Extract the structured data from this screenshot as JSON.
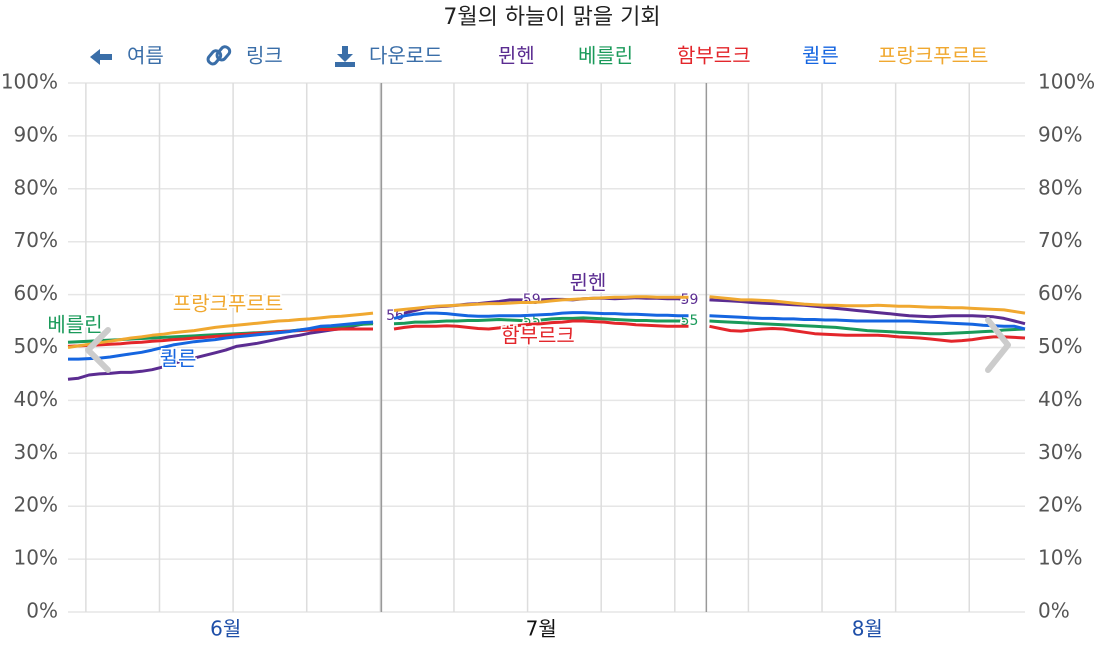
{
  "chart_data": {
    "type": "line",
    "title": "7월의 하늘이 맑을 기회",
    "toolbar": {
      "back": "여름",
      "link": "링크",
      "download": "다운로드"
    },
    "categories": [
      null,
      null,
      null,
      null,
      null,
      null,
      null,
      null,
      null,
      null,
      null,
      null,
      null,
      null,
      null,
      "6월",
      null,
      null,
      null,
      null,
      null,
      null,
      null,
      null,
      null,
      null,
      null,
      null,
      null,
      null,
      null,
      null,
      null,
      null,
      null,
      null,
      null,
      null,
      null,
      null,
      null,
      null,
      null,
      null,
      null,
      "7월",
      null,
      null,
      null,
      null,
      null,
      null,
      null,
      null,
      null,
      null,
      null,
      null,
      null,
      null,
      null,
      null,
      null,
      null,
      null,
      null,
      null,
      null,
      null,
      null,
      null,
      null,
      null,
      null,
      null,
      null,
      "8월",
      null,
      null,
      null,
      null,
      null,
      null,
      null,
      null,
      null,
      null,
      null,
      null,
      null,
      null,
      null
    ],
    "highlight_category": "7월",
    "ylim": [
      0,
      100
    ],
    "yticks": [
      {
        "value": 0,
        "label": "0%"
      },
      {
        "value": 10,
        "label": "10%"
      },
      {
        "value": 20,
        "label": "20%"
      },
      {
        "value": 30,
        "label": "30%"
      },
      {
        "value": 40,
        "label": "40%"
      },
      {
        "value": 50,
        "label": "50%"
      },
      {
        "value": 60,
        "label": "60%"
      },
      {
        "value": 70,
        "label": "70%"
      },
      {
        "value": 80,
        "label": "80%"
      },
      {
        "value": 90,
        "label": "90%"
      },
      {
        "value": 100,
        "label": "100%"
      }
    ],
    "grid": true,
    "series": [
      {
        "name": "뮌헨",
        "color": "#5b2c91",
        "values": [
          44,
          44.2,
          44.8,
          45,
          45.1,
          45.3,
          45.3,
          45.5,
          45.8,
          46.3,
          47,
          47.5,
          48,
          48.5,
          49,
          49.5,
          50.2,
          50.5,
          50.8,
          51.2,
          51.6,
          52,
          52.3,
          52.7,
          53,
          53.3,
          53.6,
          54,
          54.4,
          54.8,
          null,
          56,
          56.5,
          57,
          57.5,
          57.7,
          57.8,
          58,
          58.2,
          58.3,
          58.5,
          58.7,
          59,
          59,
          59,
          59,
          59.1,
          59.1,
          59,
          59.2,
          59.3,
          59.3,
          59.2,
          59.3,
          59.4,
          59.3,
          59.3,
          59.2,
          59.2,
          59,
          null,
          59,
          58.9,
          58.8,
          58.7,
          58.5,
          58.4,
          58.3,
          58.2,
          58.1,
          58,
          57.8,
          57.6,
          57.4,
          57.2,
          57,
          56.8,
          56.6,
          56.4,
          56.2,
          56,
          55.9,
          55.8,
          55.9,
          56,
          56,
          56,
          55.9,
          55.8,
          55.5,
          55,
          54.5
        ],
        "value_labels": [
          null,
          null,
          null,
          null,
          null,
          null,
          null,
          null,
          null,
          null,
          null,
          null,
          null,
          null,
          null,
          null,
          null,
          null,
          null,
          null,
          null,
          null,
          null,
          null,
          null,
          null,
          null,
          null,
          null,
          null,
          null,
          "56",
          null,
          null,
          null,
          null,
          null,
          null,
          null,
          null,
          null,
          null,
          null,
          null,
          "59",
          null,
          null,
          null,
          null,
          null,
          null,
          null,
          null,
          null,
          null,
          null,
          null,
          null,
          null,
          "59",
          null,
          null,
          null,
          null,
          null,
          null,
          null,
          null,
          null,
          null,
          null,
          null,
          null,
          null,
          null,
          null,
          null,
          null,
          null,
          null,
          null,
          null,
          null,
          null,
          null,
          null,
          null,
          null,
          null,
          null,
          null,
          null
        ]
      },
      {
        "name": "베를린",
        "color": "#1a9a5a",
        "values": [
          51,
          51.1,
          51.2,
          51.3,
          51.4,
          51.5,
          51.6,
          51.7,
          51.8,
          51.9,
          52,
          52.1,
          52.2,
          52.3,
          52.4,
          52.5,
          52.6,
          52.7,
          52.8,
          52.9,
          53,
          53.1,
          53.3,
          53.5,
          53.7,
          53.9,
          54,
          54.2,
          54.4,
          54.5,
          null,
          54.5,
          54.6,
          54.8,
          54.8,
          54.9,
          55,
          55,
          55.1,
          55.1,
          55.2,
          55.3,
          55.2,
          55.1,
          55,
          55.2,
          55.4,
          55.5,
          55.5,
          55.6,
          55.5,
          55.4,
          55.3,
          55.2,
          55.1,
          55.1,
          55,
          55,
          55,
          55,
          null,
          55,
          54.9,
          54.8,
          54.7,
          54.6,
          54.5,
          54.4,
          54.3,
          54.2,
          54.1,
          54,
          53.9,
          53.8,
          53.6,
          53.4,
          53.2,
          53.1,
          53,
          52.9,
          52.8,
          52.7,
          52.6,
          52.6,
          52.7,
          52.8,
          52.9,
          53,
          53.1,
          53.3,
          53.4,
          53.5
        ],
        "value_labels": [
          null,
          null,
          null,
          null,
          null,
          null,
          null,
          null,
          null,
          null,
          null,
          null,
          null,
          null,
          null,
          null,
          null,
          null,
          null,
          null,
          null,
          null,
          null,
          null,
          null,
          null,
          null,
          null,
          null,
          null,
          null,
          null,
          null,
          null,
          null,
          null,
          null,
          null,
          null,
          null,
          null,
          null,
          null,
          null,
          "55",
          null,
          null,
          null,
          null,
          null,
          null,
          null,
          null,
          null,
          null,
          null,
          null,
          null,
          null,
          "55",
          null,
          null,
          null,
          null,
          null,
          null,
          null,
          null,
          null,
          null,
          null,
          null,
          null,
          null,
          null,
          null,
          null,
          null,
          null,
          null,
          null,
          null,
          null,
          null,
          null,
          null,
          null,
          null,
          null,
          null,
          null,
          null
        ]
      },
      {
        "name": "함부르크",
        "color": "#e3262b",
        "values": [
          50.2,
          50.3,
          50.4,
          50.5,
          50.6,
          50.7,
          50.9,
          51,
          51.2,
          51.3,
          51.5,
          51.6,
          51.8,
          51.9,
          52.1,
          52.2,
          52.4,
          52.5,
          52.7,
          52.8,
          53,
          53.1,
          53.2,
          53.3,
          53.4,
          53.4,
          53.5,
          53.5,
          53.5,
          53.5,
          null,
          53.5,
          53.8,
          54,
          54,
          54,
          54.1,
          54,
          53.8,
          53.6,
          53.5,
          53.7,
          54,
          54.2,
          54.4,
          54.5,
          54.7,
          54.8,
          55,
          55,
          54.9,
          54.8,
          54.6,
          54.5,
          54.3,
          54.2,
          54.1,
          54,
          54,
          54,
          null,
          54,
          53.6,
          53.2,
          53.1,
          53.3,
          53.5,
          53.6,
          53.5,
          53.2,
          52.9,
          52.6,
          52.5,
          52.4,
          52.3,
          52.3,
          52.3,
          52.3,
          52.2,
          52,
          51.9,
          51.8,
          51.6,
          51.4,
          51.2,
          51.3,
          51.5,
          51.8,
          52,
          52,
          51.9,
          51.8
        ]
      },
      {
        "name": "퀼른",
        "color": "#1565e0",
        "values": [
          47.8,
          47.8,
          47.9,
          48,
          48.2,
          48.5,
          48.8,
          49.1,
          49.5,
          50,
          50.5,
          50.8,
          51.1,
          51.3,
          51.5,
          51.8,
          52,
          52.2,
          52.4,
          52.6,
          52.8,
          53,
          53.3,
          53.6,
          54,
          54.1,
          54.3,
          54.5,
          54.7,
          54.8,
          null,
          55.5,
          56,
          56.3,
          56.5,
          56.5,
          56.4,
          56.2,
          56,
          55.9,
          55.9,
          56,
          56,
          56,
          56.1,
          56.2,
          56.3,
          56.5,
          56.6,
          56.6,
          56.5,
          56.4,
          56.4,
          56.3,
          56.3,
          56.2,
          56.1,
          56.1,
          56,
          56,
          null,
          56,
          55.9,
          55.8,
          55.7,
          55.6,
          55.5,
          55.5,
          55.4,
          55.4,
          55.3,
          55.3,
          55.2,
          55.2,
          55.1,
          55,
          55,
          55,
          55,
          55,
          55,
          54.9,
          54.8,
          54.7,
          54.6,
          54.5,
          54.4,
          54.2,
          54.1,
          54,
          54,
          53.5
        ]
      },
      {
        "name": "프랑크푸르트",
        "color": "#f0a830",
        "values": [
          50,
          50.3,
          50.6,
          50.9,
          51.2,
          51.5,
          51.8,
          52,
          52.3,
          52.5,
          52.8,
          53,
          53.2,
          53.5,
          53.8,
          54,
          54.2,
          54.4,
          54.6,
          54.8,
          55,
          55.1,
          55.3,
          55.4,
          55.6,
          55.8,
          55.9,
          56.1,
          56.3,
          56.5,
          null,
          57,
          57.2,
          57.4,
          57.6,
          57.8,
          57.9,
          58,
          58.1,
          58.2,
          58.3,
          58.3,
          58.4,
          58.5,
          58.5,
          58.6,
          58.8,
          59,
          59.1,
          59.2,
          59.3,
          59.4,
          59.5,
          59.5,
          59.6,
          59.6,
          59.5,
          59.5,
          59.5,
          59.5,
          null,
          59.6,
          59.4,
          59.2,
          59,
          59,
          58.9,
          58.8,
          58.6,
          58.4,
          58.2,
          58.1,
          58,
          58,
          57.9,
          57.9,
          57.9,
          58,
          57.9,
          57.8,
          57.8,
          57.7,
          57.6,
          57.6,
          57.5,
          57.5,
          57.4,
          57.3,
          57.2,
          57.1,
          56.8,
          56.5
        ]
      }
    ]
  }
}
